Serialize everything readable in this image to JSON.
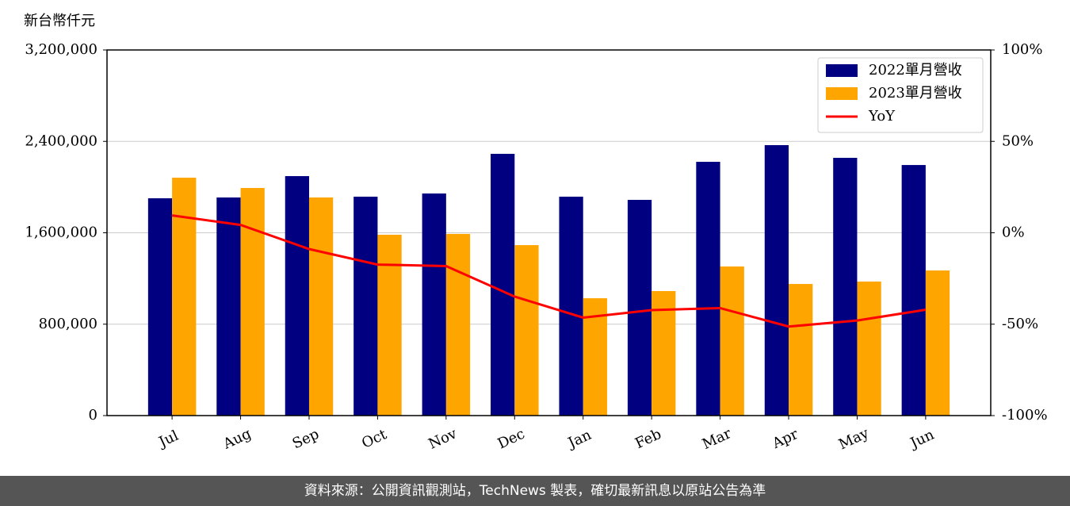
{
  "chart_data": {
    "type": "bar-line",
    "y_label": "新台幣仟元",
    "footer": "資料來源：公開資訊觀測站，TechNews 製表，確切最新訊息以原站公告為準",
    "categories": [
      "Jul",
      "Aug",
      "Sep",
      "Oct",
      "Nov",
      "Dec",
      "Jan",
      "Feb",
      "Mar",
      "Apr",
      "May",
      "Jun"
    ],
    "series": [
      {
        "name": "2022單月營收",
        "color": "#000080",
        "values": [
          1902000,
          1909000,
          2096000,
          1916000,
          1944000,
          2291000,
          1916000,
          1888000,
          2221000,
          2367000,
          2256000,
          2193000
        ]
      },
      {
        "name": "2023單月營收",
        "color": "#ffa500",
        "values": [
          2082000,
          1992000,
          1909000,
          1583000,
          1590000,
          1492000,
          1027000,
          1090000,
          1305000,
          1152000,
          1173000,
          1270000
        ]
      },
      {
        "name": "YoY",
        "color": "#ff0000",
        "axis": "y2",
        "values": [
          9.5,
          4.3,
          -8.9,
          -17.4,
          -18.2,
          -34.9,
          -46.4,
          -42.3,
          -41.2,
          -51.3,
          -48.0,
          -42.1
        ]
      }
    ],
    "ylim": [
      0,
      3200000
    ],
    "yticks": [
      0,
      {
        "value": 800000,
        "label": "800,000"
      },
      {
        "value": 1600000,
        "label": "1,600,000"
      },
      {
        "value": 2400000,
        "label": "2,400,000"
      },
      {
        "value": 3200000,
        "label": "3,200,000"
      }
    ],
    "y2lim": [
      -100,
      100
    ],
    "y2ticks": [
      {
        "value": -100,
        "label": "-100%"
      },
      {
        "value": -50,
        "label": "-50%"
      },
      {
        "value": 0,
        "label": "0%"
      },
      {
        "value": 50,
        "label": "50%"
      },
      {
        "value": 100,
        "label": "100%"
      }
    ],
    "grid": true,
    "legend": "upper right"
  }
}
